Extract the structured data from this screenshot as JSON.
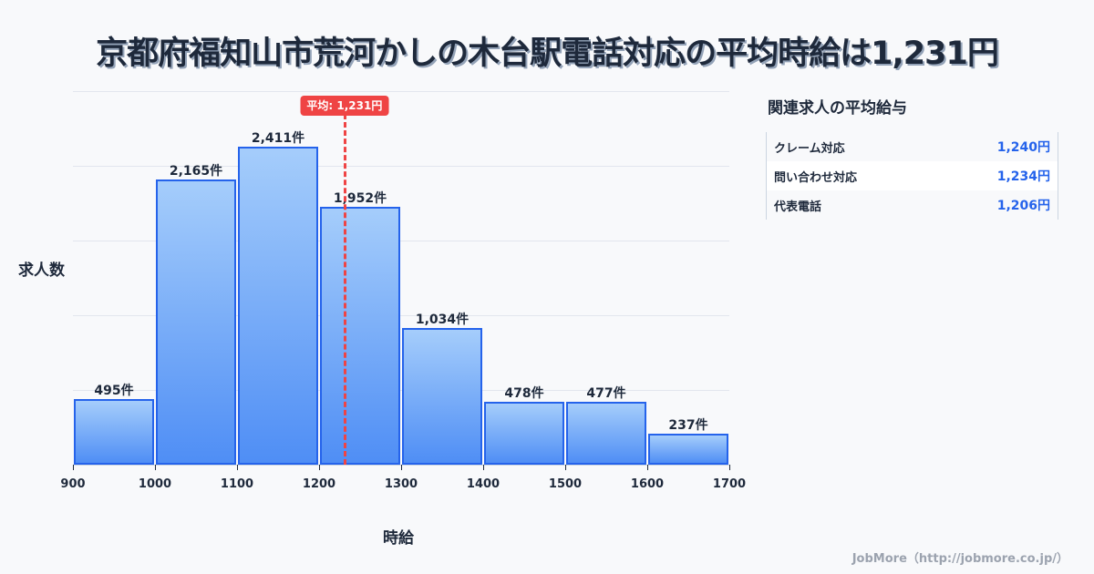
{
  "title": "京都府福知山市荒河かしの木台駅電話対応の平均時給は1,231円",
  "chart_data": {
    "type": "bar",
    "title": "京都府福知山市荒河かしの木台駅電話対応の平均時給は1,231円",
    "xlabel": "時給",
    "ylabel": "求人数",
    "categories": [
      "900-1000",
      "1000-1100",
      "1100-1200",
      "1200-1300",
      "1300-1400",
      "1400-1500",
      "1500-1600",
      "1600-1700"
    ],
    "bin_edges": [
      900,
      1000,
      1100,
      1200,
      1300,
      1400,
      1500,
      1600,
      1700
    ],
    "values": [
      495,
      2165,
      2411,
      1952,
      1034,
      478,
      477,
      237
    ],
    "value_labels": [
      "495件",
      "2,165件",
      "2,411件",
      "1,952件",
      "1,034件",
      "478件",
      "477件",
      "237件"
    ],
    "x_ticks": [
      "900",
      "1000",
      "1100",
      "1200",
      "1300",
      "1400",
      "1500",
      "1600",
      "1700"
    ],
    "xlim": [
      900,
      1700
    ],
    "ylim": [
      0,
      2832
    ],
    "grid": true,
    "mean": 1231,
    "mean_label": "平均: 1,231円"
  },
  "related": {
    "title": "関連求人の平均給与",
    "rows": [
      {
        "label": "クレーム対応",
        "value": "1,240円"
      },
      {
        "label": "問い合わせ対応",
        "value": "1,234円"
      },
      {
        "label": "代表電話",
        "value": "1,206円"
      }
    ]
  },
  "footer": "JobMore（http://jobmore.co.jp/）",
  "colors": {
    "bar_border": "#2563eb",
    "bar_top": "#a5cdfb",
    "bar_bottom": "#4f8ef5",
    "mean": "#ef4444",
    "value": "#2563eb"
  }
}
